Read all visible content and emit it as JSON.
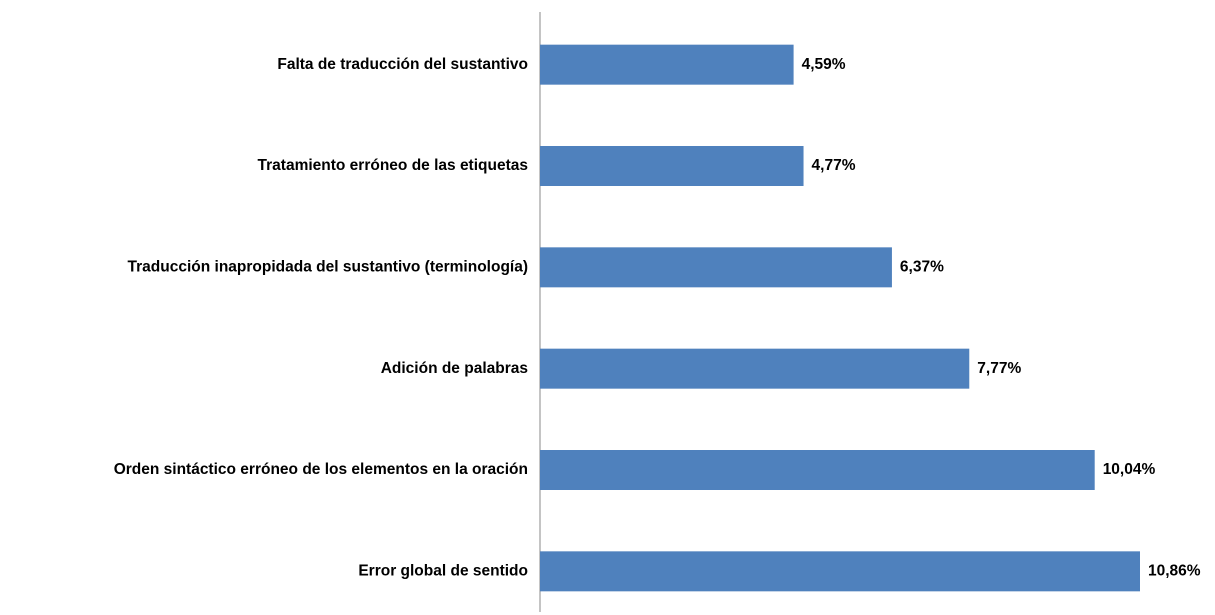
{
  "chart_data": {
    "type": "bar",
    "orientation": "horizontal",
    "categories": [
      "Falta de traducción del sustantivo",
      "Tratamiento erróneo de las etiquetas",
      "Traducción inapropidada del sustantivo (terminología)",
      "Adición de palabras",
      "Orden sintáctico erróneo de los elementos en la oración",
      "Error global de sentido"
    ],
    "values": [
      4.59,
      4.77,
      6.37,
      7.77,
      10.04,
      10.86
    ],
    "value_labels": [
      "4,59%",
      "4,77%",
      "6,37%",
      "7,77%",
      "10,04%",
      "10,86%"
    ],
    "color": "#4f81bd"
  }
}
